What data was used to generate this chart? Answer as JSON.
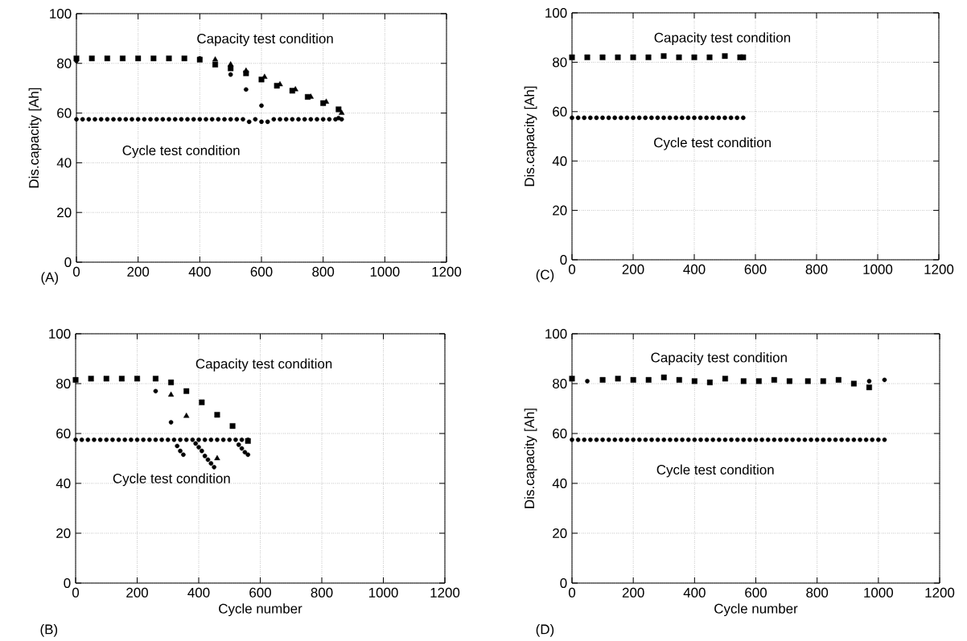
{
  "chart_data": [
    {
      "type": "scatter",
      "ylabel": "Dis.capacity [Ah]",
      "xlim": [
        0,
        1200
      ],
      "ylim": [
        0,
        100
      ],
      "xticks": [
        0,
        200,
        400,
        600,
        800,
        1000,
        1200
      ],
      "yticks": [
        0,
        20,
        40,
        60,
        80,
        100
      ],
      "grid": true,
      "annotations": [
        "Capacity test condition",
        "Cycle test condition",
        "(A)"
      ],
      "series": [
        {
          "color": "#000000",
          "marker": "square",
          "x": [
            0,
            50,
            100,
            150,
            200,
            250,
            300,
            350,
            400,
            450,
            500,
            550,
            600,
            650,
            700,
            750,
            800,
            850
          ],
          "values": [
            82,
            82,
            82,
            82,
            82,
            82,
            82,
            82,
            81.5,
            79.5,
            78,
            76,
            73.5,
            71,
            69,
            66.5,
            64,
            61.5
          ]
        },
        {
          "color": "#000000",
          "marker": "triangle",
          "x": [
            450,
            500,
            550,
            610,
            660,
            710,
            760,
            810,
            860
          ],
          "values": [
            81.5,
            79.5,
            77,
            74.5,
            71.5,
            69.5,
            66.5,
            64.5,
            60
          ]
        },
        {
          "color": "#000000",
          "marker": "circle",
          "x": [
            0,
            400,
            500,
            550,
            600,
            850
          ],
          "values": [
            81,
            82,
            75.5,
            69.5,
            63,
            58
          ]
        },
        {
          "color": "#000000",
          "marker": "circle",
          "x": [
            0,
            20,
            40,
            60,
            80,
            100,
            120,
            140,
            160,
            180,
            200,
            220,
            240,
            260,
            280,
            300,
            320,
            340,
            360,
            380,
            400,
            420,
            440,
            460,
            480,
            500,
            520,
            540,
            560,
            580,
            600,
            620,
            640,
            660,
            680,
            700,
            720,
            740,
            760,
            780,
            800,
            820,
            840,
            860
          ],
          "values": [
            57.5,
            57.5,
            57.5,
            57.5,
            57.5,
            57.5,
            57.5,
            57.5,
            57.5,
            57.5,
            57.5,
            57.5,
            57.5,
            57.5,
            57.5,
            57.5,
            57.5,
            57.5,
            57.5,
            57.5,
            57.5,
            57.5,
            57.5,
            57.5,
            57.5,
            57.5,
            57.5,
            57.5,
            56.5,
            57.5,
            56.5,
            56.5,
            57.5,
            57.5,
            57.5,
            57.5,
            57.5,
            57.5,
            57.5,
            57.5,
            57.5,
            57.5,
            57.5,
            57.5
          ]
        }
      ]
    },
    {
      "type": "scatter",
      "ylabel": "Dis.capacity [Ah]",
      "xlim": [
        0,
        1200
      ],
      "ylim": [
        0,
        100
      ],
      "xticks": [
        0,
        200,
        400,
        600,
        800,
        1000,
        1200
      ],
      "yticks": [
        0,
        20,
        40,
        60,
        80,
        100
      ],
      "grid": true,
      "annotations": [
        "Capacity test condition",
        "Cycle test condition",
        "(C)"
      ],
      "series": [
        {
          "color": "#000000",
          "marker": "square",
          "x": [
            0,
            50,
            100,
            150,
            200,
            250,
            300,
            350,
            400,
            450,
            500,
            550,
            560
          ],
          "values": [
            82,
            82,
            82,
            82,
            82,
            82,
            82.5,
            82,
            82,
            82,
            82.5,
            82,
            82
          ]
        },
        {
          "color": "#000000",
          "marker": "circle",
          "x": [
            0,
            20,
            40,
            60,
            80,
            100,
            120,
            140,
            160,
            180,
            200,
            220,
            240,
            260,
            280,
            300,
            320,
            340,
            360,
            380,
            400,
            420,
            440,
            460,
            480,
            500,
            520,
            540,
            560
          ],
          "values": [
            57.5,
            57.5,
            57.5,
            57.5,
            57.5,
            57.5,
            57.5,
            57.5,
            57.5,
            57.5,
            57.5,
            57.5,
            57.5,
            57.5,
            57.5,
            57.5,
            57.5,
            57.5,
            57.5,
            57.5,
            57.5,
            57.5,
            57.5,
            57.5,
            57.5,
            57.5,
            57.5,
            57.5,
            57.5
          ]
        }
      ]
    },
    {
      "type": "scatter",
      "xlabel": "Cycle number",
      "xlim": [
        0,
        1200
      ],
      "ylim": [
        0,
        100
      ],
      "xticks": [
        0,
        200,
        400,
        600,
        800,
        1000,
        1200
      ],
      "yticks": [
        0,
        20,
        40,
        60,
        80,
        100
      ],
      "grid": true,
      "annotations": [
        "Capacity test condition",
        "Cycle test condition",
        "(B)"
      ],
      "series": [
        {
          "color": "#000000",
          "marker": "square",
          "x": [
            0,
            50,
            100,
            150,
            200,
            260,
            310,
            360,
            410,
            460,
            510,
            560
          ],
          "values": [
            81.5,
            82,
            82,
            82,
            82,
            82,
            80.5,
            77,
            72.5,
            67.5,
            63,
            57
          ]
        },
        {
          "color": "#000000",
          "marker": "circle",
          "x": [
            260,
            310
          ],
          "values": [
            77,
            64.5
          ]
        },
        {
          "color": "#000000",
          "marker": "triangle",
          "x": [
            310,
            360,
            460
          ],
          "values": [
            75.5,
            67,
            50
          ]
        },
        {
          "color": "#000000",
          "marker": "circle",
          "x": [
            0,
            20,
            40,
            60,
            80,
            100,
            120,
            140,
            160,
            180,
            200,
            220,
            240,
            260,
            280,
            300,
            320,
            340,
            360,
            380,
            400,
            420,
            440,
            460,
            480,
            500,
            520,
            540,
            560,
            330,
            340,
            350,
            390,
            400,
            410,
            420,
            430,
            440,
            450,
            530,
            540,
            550,
            560
          ],
          "values": [
            57.5,
            57.5,
            57.5,
            57.5,
            57.5,
            57.5,
            57.5,
            57.5,
            57.5,
            57.5,
            57.5,
            57.5,
            57.5,
            57.5,
            57.5,
            57.5,
            57.5,
            57.5,
            57.5,
            57.5,
            57.5,
            57.5,
            57.5,
            57.5,
            57.5,
            57.5,
            57.5,
            57.5,
            57.5,
            55,
            53,
            51.5,
            56,
            54.5,
            53,
            51,
            49.5,
            48,
            46.5,
            55.5,
            54,
            52.5,
            51.5
          ]
        }
      ]
    },
    {
      "type": "scatter",
      "xlabel": "Cycle number",
      "ylabel": "Dis.capacity [Ah]",
      "xlim": [
        0,
        1200
      ],
      "ylim": [
        0,
        100
      ],
      "xticks": [
        0,
        200,
        400,
        600,
        800,
        1000,
        1200
      ],
      "yticks": [
        0,
        20,
        40,
        60,
        80,
        100
      ],
      "grid": true,
      "annotations": [
        "Capacity test condition",
        "Cycle test condition",
        "(D)"
      ],
      "series": [
        {
          "color": "#000000",
          "marker": "square",
          "x": [
            0,
            100,
            150,
            200,
            250,
            300,
            350,
            400,
            450,
            500,
            560,
            610,
            660,
            710,
            770,
            820,
            870,
            920,
            970
          ],
          "values": [
            82,
            81.5,
            82,
            81.5,
            81.5,
            82.5,
            81.5,
            81,
            80.5,
            82,
            81,
            81,
            81.5,
            81,
            81,
            81,
            81.5,
            80,
            78.5
          ]
        },
        {
          "color": "#000000",
          "marker": "circle",
          "x": [
            50,
            970,
            1020
          ],
          "values": [
            81,
            81,
            81.5
          ]
        },
        {
          "color": "#000000",
          "marker": "circle",
          "x": [
            0,
            20,
            40,
            60,
            80,
            100,
            120,
            140,
            160,
            180,
            200,
            220,
            240,
            260,
            280,
            300,
            320,
            340,
            360,
            380,
            400,
            420,
            440,
            460,
            480,
            500,
            520,
            540,
            560,
            580,
            600,
            620,
            640,
            660,
            680,
            700,
            720,
            740,
            760,
            780,
            800,
            820,
            840,
            860,
            880,
            900,
            920,
            940,
            960,
            980,
            1000,
            1020
          ],
          "values": [
            57.5,
            57.5,
            57.5,
            57.5,
            57.5,
            57.5,
            57.5,
            57.5,
            57.5,
            57.5,
            57.5,
            57.5,
            57.5,
            57.5,
            57.5,
            57.5,
            57.5,
            57.5,
            57.5,
            57.5,
            57.5,
            57.5,
            57.5,
            57.5,
            57.5,
            57.5,
            57.5,
            57.5,
            57.5,
            57.5,
            57.5,
            57.5,
            57.5,
            57.5,
            57.5,
            57.5,
            57.5,
            57.5,
            57.5,
            57.5,
            57.5,
            57.5,
            57.5,
            57.5,
            57.5,
            57.5,
            57.5,
            57.5,
            57.5,
            57.5,
            57.5,
            57.5
          ]
        }
      ]
    }
  ]
}
